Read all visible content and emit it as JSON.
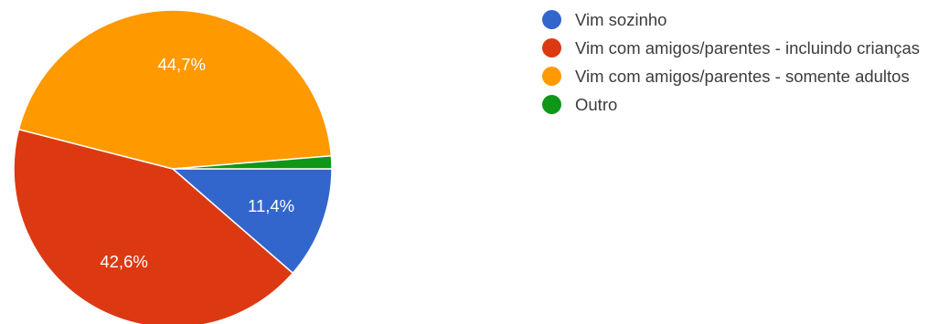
{
  "chart_data": {
    "type": "pie",
    "slices": [
      {
        "name": "Vim sozinho",
        "value": 11.4,
        "label": "11,4%",
        "color": "#3366cc"
      },
      {
        "name": "Vim com amigos/parentes - incluindo crianças",
        "value": 42.6,
        "label": "42,6%",
        "color": "#dc3912"
      },
      {
        "name": "Vim com amigos/parentes - somente adultos",
        "value": 44.7,
        "label": "44,7%",
        "color": "#ff9900"
      },
      {
        "name": "Outro",
        "value": 1.3,
        "label": "",
        "color": "#109618"
      }
    ],
    "legend_position": "right"
  }
}
